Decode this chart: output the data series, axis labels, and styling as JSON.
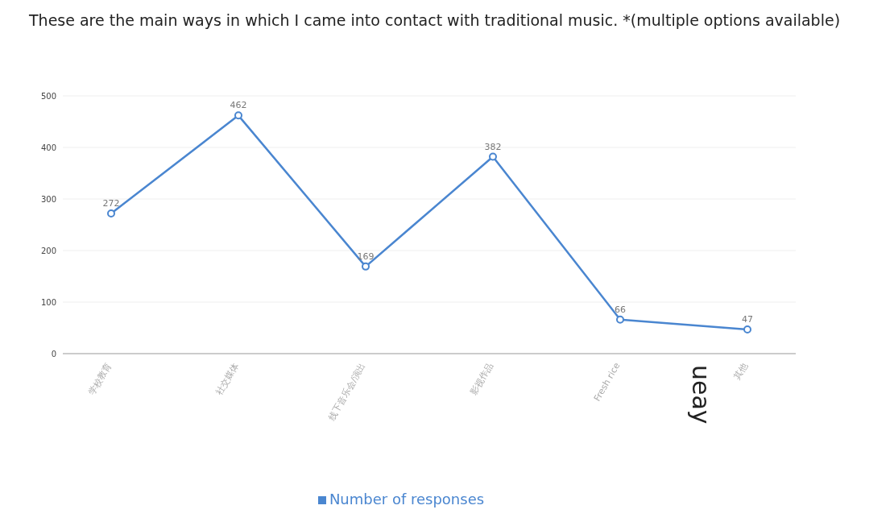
{
  "chart_data": {
    "type": "line",
    "title": "These are the main ways in which I came into contact with traditional music. *(multiple options available)",
    "categories": [
      "学校教育",
      "社交媒体",
      "线下音乐会/演出",
      "影视作品",
      "Fresh rice",
      "其他"
    ],
    "series": [
      {
        "name": "Number of responses",
        "color": "#4a86d0",
        "values": [
          272,
          462,
          169,
          382,
          66,
          47
        ]
      }
    ],
    "ylim": [
      0,
      500
    ],
    "yticks": [
      0,
      100,
      200,
      300,
      400,
      500
    ],
    "grid": "y",
    "legend": "bottom",
    "marker": "circle",
    "line_style": "solid",
    "data_labels": true,
    "annotations": [
      "ueay"
    ]
  }
}
